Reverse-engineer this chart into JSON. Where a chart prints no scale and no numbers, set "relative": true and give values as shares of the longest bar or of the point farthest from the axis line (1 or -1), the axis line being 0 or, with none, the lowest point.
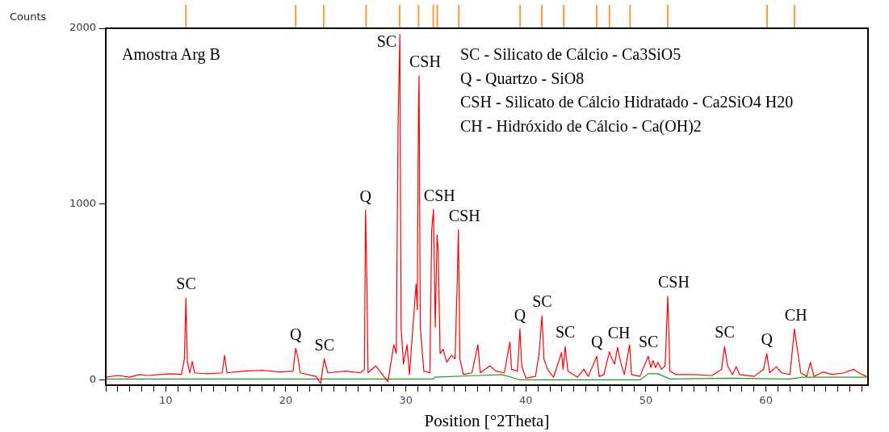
{
  "chart_data": [
    {
      "type": "bar",
      "relative": true,
      "color": "#ff9933",
      "xlim": [
        5,
        68.5
      ],
      "x": [
        11.68,
        20.82,
        23.15,
        26.69,
        29.49,
        31.06,
        32.28,
        32.62,
        34.41,
        39.52,
        41.33,
        43.15,
        45.9,
        46.96,
        48.68,
        51.82,
        60.09,
        62.37
      ],
      "values": [
        1,
        1,
        1,
        1,
        1,
        1,
        1,
        1,
        1,
        1,
        1,
        1,
        1,
        1,
        1,
        1,
        1,
        1
      ]
    },
    {
      "type": "line",
      "title": "Amostra Arg B",
      "xlabel": "Position [°2Theta]",
      "ylabel": "Counts",
      "xlim": [
        5,
        68.5
      ],
      "ylim": [
        -30,
        2000
      ],
      "yticks": [
        0,
        1000,
        2000
      ],
      "xticks": [
        {
          "value": 5,
          "label": null
        },
        {
          "value": 6,
          "label": null
        },
        {
          "value": 7,
          "label": null
        },
        {
          "value": 8,
          "label": null
        },
        {
          "value": 9,
          "label": null
        },
        10,
        {
          "value": 11,
          "label": null
        },
        {
          "value": 12,
          "label": null
        },
        {
          "value": 13,
          "label": null
        },
        {
          "value": 14,
          "label": null
        },
        {
          "value": 15,
          "label": null
        },
        {
          "value": 16,
          "label": null
        },
        {
          "value": 17,
          "label": null
        },
        {
          "value": 18,
          "label": null
        },
        {
          "value": 19,
          "label": null
        },
        20,
        {
          "value": 21,
          "label": null
        },
        {
          "value": 22,
          "label": null
        },
        {
          "value": 23,
          "label": null
        },
        {
          "value": 24,
          "label": null
        },
        {
          "value": 25,
          "label": null
        },
        {
          "value": 26,
          "label": null
        },
        {
          "value": 27,
          "label": null
        },
        {
          "value": 28,
          "label": null
        },
        {
          "value": 29,
          "label": null
        },
        30,
        {
          "value": 31,
          "label": null
        },
        {
          "value": 32,
          "label": null
        },
        {
          "value": 33,
          "label": null
        },
        {
          "value": 34,
          "label": null
        },
        {
          "value": 35,
          "label": null
        },
        {
          "value": 36,
          "label": null
        },
        {
          "value": 37,
          "label": null
        },
        {
          "value": 38,
          "label": null
        },
        {
          "value": 39,
          "label": null
        },
        40,
        {
          "value": 41,
          "label": null
        },
        {
          "value": 42,
          "label": null
        },
        {
          "value": 43,
          "label": null
        },
        {
          "value": 44,
          "label": null
        },
        {
          "value": 45,
          "label": null
        },
        {
          "value": 46,
          "label": null
        },
        {
          "value": 47,
          "label": null
        },
        {
          "value": 48,
          "label": null
        },
        {
          "value": 49,
          "label": null
        },
        50,
        {
          "value": 51,
          "label": null
        },
        {
          "value": 52,
          "label": null
        },
        {
          "value": 53,
          "label": null
        },
        {
          "value": 54,
          "label": null
        },
        {
          "value": 55,
          "label": null
        },
        {
          "value": 56,
          "label": null
        },
        {
          "value": 57,
          "label": null
        },
        {
          "value": 58,
          "label": null
        },
        {
          "value": 59,
          "label": null
        },
        60,
        {
          "value": 61,
          "label": null
        },
        {
          "value": 62,
          "label": null
        },
        {
          "value": 63,
          "label": null
        },
        {
          "value": 64,
          "label": null
        },
        {
          "value": 65,
          "label": null
        },
        {
          "value": 66,
          "label": null
        },
        {
          "value": 67,
          "label": null
        },
        {
          "value": 68,
          "label": null
        }
      ],
      "grid": false,
      "legend": false,
      "marker": "none",
      "line_style": "solid",
      "series": [
        {
          "color": "#ff0000",
          "x": [
            5,
            6,
            7,
            7.8,
            8.5,
            9.5,
            10.5,
            11.3,
            11.55,
            11.68,
            11.8,
            12,
            12.2,
            12.4,
            13.5,
            14.7,
            14.9,
            15.1,
            16.5,
            18,
            19.5,
            20.6,
            20.82,
            21,
            21.2,
            22.5,
            22.9,
            23.2,
            23.5,
            25,
            26.2,
            26.55,
            26.64,
            26.72,
            26.85,
            27.5,
            28.5,
            29,
            29.2,
            29.35,
            29.5,
            29.6,
            29.8,
            30.1,
            30.3,
            30.85,
            30.95,
            31.05,
            31.1,
            31.2,
            31.5,
            32,
            32.15,
            32.3,
            32.45,
            32.6,
            32.7,
            32.85,
            33.1,
            33.4,
            33.8,
            34.1,
            34.28,
            34.38,
            34.5,
            34.8,
            35.5,
            36,
            36.2,
            37,
            37.5,
            38.2,
            38.67,
            38.8,
            39.3,
            39.5,
            39.65,
            40,
            40.8,
            41.1,
            41.34,
            41.5,
            41.8,
            42.3,
            42.97,
            43.1,
            43.27,
            43.5,
            44.3,
            44.83,
            45.2,
            45.91,
            46.1,
            46.5,
            46.96,
            47.2,
            47.4,
            47.63,
            47.9,
            48.2,
            48.64,
            48.8,
            49.5,
            50.2,
            50.4,
            50.6,
            50.8,
            51,
            51.3,
            51.6,
            51.82,
            52,
            52.5,
            54,
            55.5,
            56.3,
            56.55,
            56.8,
            57.2,
            57.53,
            57.8,
            59,
            59.8,
            60.07,
            60.3,
            60.87,
            61.3,
            62,
            62.37,
            62.6,
            62.9,
            63.4,
            63.7,
            64,
            64.77,
            65.5,
            66.5,
            67.3,
            68,
            68.4
          ],
          "values": [
            15,
            25,
            15,
            30,
            25,
            30,
            35,
            30,
            120,
            465,
            100,
            40,
            105,
            40,
            35,
            40,
            140,
            40,
            50,
            55,
            45,
            50,
            180,
            130,
            40,
            20,
            -20,
            120,
            40,
            50,
            40,
            60,
            965,
            710,
            40,
            80,
            -10,
            200,
            150,
            1440,
            1965,
            300,
            90,
            200,
            30,
            545,
            400,
            1545,
            1730,
            300,
            50,
            40,
            850,
            970,
            300,
            825,
            725,
            150,
            175,
            100,
            140,
            120,
            560,
            855,
            120,
            30,
            40,
            200,
            40,
            80,
            50,
            40,
            215,
            60,
            50,
            290,
            80,
            10,
            20,
            150,
            365,
            120,
            60,
            15,
            155,
            60,
            190,
            50,
            15,
            60,
            20,
            135,
            20,
            30,
            160,
            115,
            90,
            185,
            100,
            30,
            200,
            30,
            20,
            135,
            70,
            110,
            70,
            100,
            60,
            80,
            475,
            50,
            30,
            30,
            25,
            60,
            190,
            80,
            30,
            75,
            30,
            20,
            60,
            150,
            40,
            75,
            40,
            30,
            290,
            180,
            40,
            20,
            100,
            20,
            45,
            30,
            40,
            60,
            30,
            20
          ]
        },
        {
          "color": "#229922",
          "x": [
            5,
            32.3,
            32.4,
            36,
            38,
            39.5,
            49.5,
            50.2,
            51,
            52,
            57,
            62,
            63,
            68.4
          ],
          "values": [
            5,
            5,
            15,
            25,
            30,
            0,
            0,
            35,
            35,
            5,
            10,
            5,
            15,
            15
          ]
        }
      ],
      "annotations": [
        "SC - Silicato de Cálcio - Ca3SiO5",
        "Q - Quartzo - SiO8",
        "CSH - Silicato de Cálcio Hidratado - Ca2SiO4 H20",
        "CH - Hidróxido de Cálcio - Ca(OH)2",
        {
          "text": "SC",
          "x": 11.68,
          "y": 465
        },
        {
          "text": "Q",
          "x": 20.82,
          "y": 180
        },
        {
          "text": "SC",
          "x": 23.2,
          "y": 120
        },
        {
          "text": "Q",
          "x": 26.64,
          "y": 965
        },
        {
          "text": "SC",
          "x": 29.5,
          "y": 1965
        },
        {
          "text": "CSH",
          "x": 31.1,
          "y": 1730
        },
        {
          "text": "CSH",
          "x": 32.3,
          "y": 970
        },
        {
          "text": "CSH",
          "x": 34.38,
          "y": 855
        },
        {
          "text": "Q",
          "x": 39.5,
          "y": 290
        },
        {
          "text": "SC",
          "x": 41.34,
          "y": 365
        },
        {
          "text": "SC",
          "x": 43.27,
          "y": 190
        },
        {
          "text": "Q",
          "x": 45.91,
          "y": 135
        },
        {
          "text": "CH",
          "x": 47.63,
          "y": 185
        },
        {
          "text": "SC",
          "x": 50.2,
          "y": 135
        },
        {
          "text": "CSH",
          "x": 51.82,
          "y": 475
        },
        {
          "text": "SC",
          "x": 56.55,
          "y": 190
        },
        {
          "text": "Q",
          "x": 60.07,
          "y": 150
        },
        {
          "text": "CH",
          "x": 62.37,
          "y": 290
        }
      ]
    }
  ]
}
